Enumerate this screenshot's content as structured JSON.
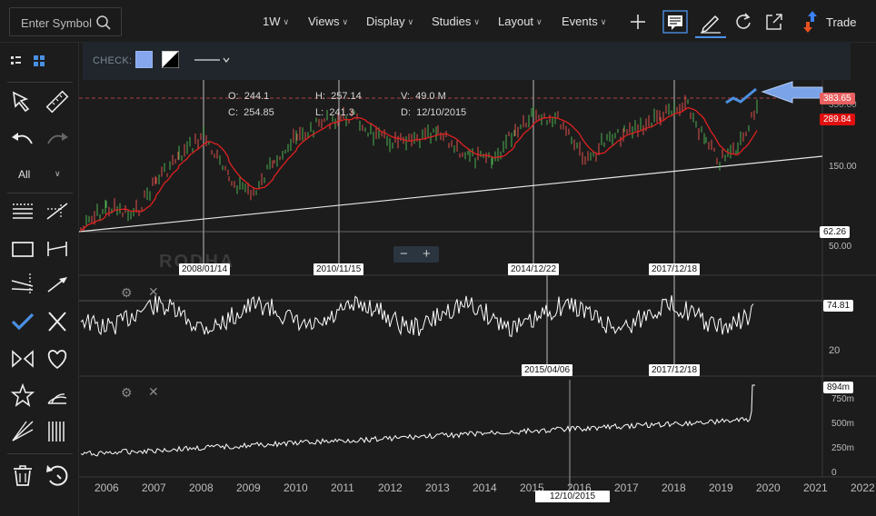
{
  "topbar": {
    "search_placeholder": "Enter Symbol",
    "menus": [
      {
        "label": "1W"
      },
      {
        "label": "Views"
      },
      {
        "label": "Display"
      },
      {
        "label": "Studies"
      },
      {
        "label": "Layout"
      },
      {
        "label": "Events"
      }
    ],
    "trade_label": "Trade"
  },
  "leftbar": {
    "filter_label": "All"
  },
  "checkbar": {
    "label": "CHECK:",
    "fill_color": "#86a7ee"
  },
  "ohlc": {
    "o_label": "O:",
    "o_value": "244.1",
    "h_label": "H:",
    "h_value": "257.14",
    "v_label": "V:",
    "v_value": "49.0 M",
    "c_label": "C:",
    "c_value": "254.85",
    "l_label": "L:",
    "l_value": "241.3",
    "d_label": "D:",
    "d_value": "12/10/2015"
  },
  "price_axis": {
    "labels": [
      "150.00",
      "50.00"
    ],
    "last_price_tag": "383.65",
    "red_tag": "289.84",
    "level_tag": "62.26",
    "top_partial": "350.00"
  },
  "watermark": "RODHA",
  "date_markers": [
    "2008/01/14",
    "2010/11/15",
    "2014/12/22",
    "2017/12/18",
    "2015/04/06",
    "2017/12/18"
  ],
  "oscillator": {
    "value_tag": "74.81",
    "axis_label": "20"
  },
  "volume": {
    "value_tag": "894m",
    "axis_labels": [
      "750m",
      "500m",
      "250m",
      "0"
    ]
  },
  "x_axis": {
    "years": [
      "2006",
      "2007",
      "2008",
      "2009",
      "2010",
      "2011",
      "2012",
      "2013",
      "2014",
      "2015",
      "2016",
      "2017",
      "2018",
      "2019",
      "2020",
      "2021",
      "2022"
    ],
    "cursor_date": "12/10/2015"
  },
  "colors": {
    "accent": "#4a90e2",
    "price_line": "#ffffff",
    "up_candle": "#4caf50",
    "down_candle": "#e0504a",
    "moving_average": "#e02020",
    "last_price_tag": "#e86060"
  }
}
